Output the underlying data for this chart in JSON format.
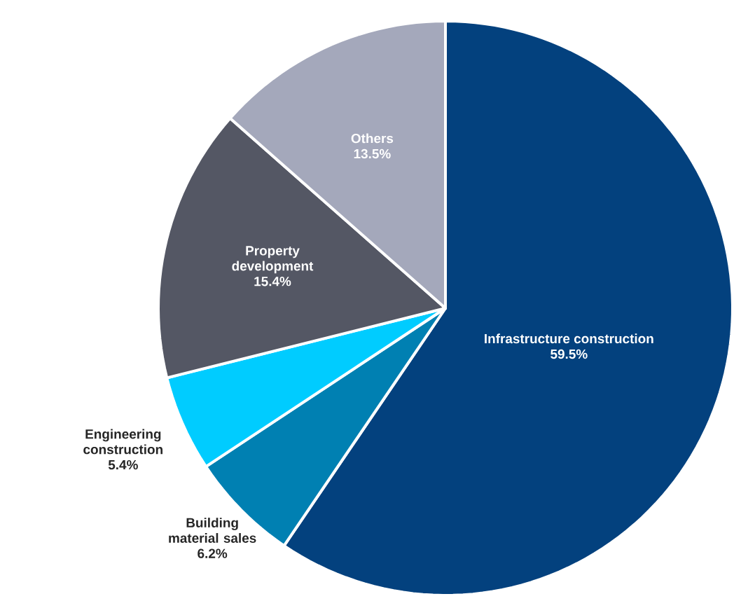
{
  "chart_data": {
    "type": "pie",
    "categories": [
      "Infrastructure construction",
      "Building material sales",
      "Engineering construction",
      "Property development",
      "Others"
    ],
    "values": [
      59.5,
      6.2,
      5.4,
      15.4,
      13.5
    ],
    "colors": [
      "#03417e",
      "#0080b2",
      "#00ccff",
      "#545764",
      "#a4a8bb"
    ],
    "value_labels": [
      "59.5%",
      "6.2%",
      "5.4%",
      "15.4%",
      "13.5%"
    ]
  }
}
